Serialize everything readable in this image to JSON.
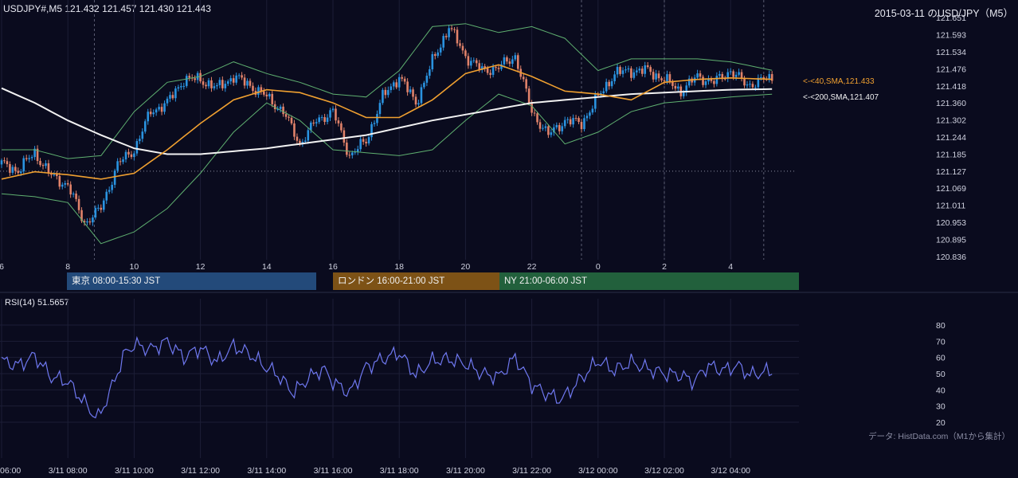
{
  "header": {
    "symbol_ohlc": "USDJPY#,M5 121.432 121.457 121.430 121.443",
    "title": "2015-03-11 のUSD/JPY（M5）"
  },
  "rsi_label": "RSI(14) 51.5657",
  "source_note": "データ: HistData.com（M1から集計）",
  "sessions": [
    {
      "label": "東京 08:00-15:30 JST",
      "color": "#234a7a"
    },
    {
      "label": "ロンドン 16:00-21:00 JST",
      "color": "#7d5216"
    },
    {
      "label": "NY 21:00-06:00 JST",
      "color": "#22603c"
    }
  ],
  "colors": {
    "background": "#0a0b1e",
    "candle_up": "#2a93e0",
    "candle_down": "#e0826a",
    "sma40": "#f0a030",
    "sma200": "#f2f2f2",
    "bollinger": "#5fb070",
    "rsi": "#6f78f0"
  },
  "chart_data": [
    {
      "type": "candlestick",
      "title": "",
      "y_ticks": [
        "121.651",
        "121.593",
        "121.534",
        "121.476",
        "121.418",
        "121.360",
        "121.302",
        "121.244",
        "121.185",
        "121.127",
        "121.069",
        "121.011",
        "120.953",
        "120.895",
        "120.836"
      ],
      "ylim": [
        120.836,
        121.651
      ],
      "x_ticks": [
        "6",
        "8",
        "10",
        "12",
        "14",
        "16",
        "18",
        "20",
        "22",
        "0",
        "2",
        "4"
      ],
      "x_ticks_bottom": [
        "06:00",
        "3/11 08:00",
        "3/11 10:00",
        "3/11 12:00",
        "3/11 14:00",
        "3/11 16:00",
        "3/11 18:00",
        "3/11 20:00",
        "3/11 22:00",
        "3/12 00:00",
        "3/12 02:00",
        "3/12 04:00"
      ],
      "series": [
        {
          "name": "<-<40,SMA,121.433",
          "value": 121.433
        },
        {
          "name": "<-<200,SMA,121.407",
          "value": 121.407
        }
      ],
      "sma40": [
        [
          6.0,
          121.1
        ],
        [
          7.0,
          121.125
        ],
        [
          8.0,
          121.115
        ],
        [
          9.0,
          121.1
        ],
        [
          10.0,
          121.12
        ],
        [
          11.0,
          121.2
        ],
        [
          12.0,
          121.29
        ],
        [
          13.0,
          121.37
        ],
        [
          14.0,
          121.405
        ],
        [
          15.0,
          121.395
        ],
        [
          16.0,
          121.36
        ],
        [
          17.0,
          121.31
        ],
        [
          18.0,
          121.31
        ],
        [
          19.0,
          121.37
        ],
        [
          20.0,
          121.46
        ],
        [
          21.0,
          121.49
        ],
        [
          22.0,
          121.45
        ],
        [
          23.0,
          121.4
        ],
        [
          24.0,
          121.39
        ],
        [
          25.0,
          121.37
        ],
        [
          26.0,
          121.43
        ],
        [
          27.0,
          121.44
        ],
        [
          28.0,
          121.445
        ],
        [
          29.3,
          121.44
        ]
      ],
      "sma200": [
        [
          6.0,
          121.41
        ],
        [
          7.0,
          121.36
        ],
        [
          8.0,
          121.3
        ],
        [
          9.0,
          121.25
        ],
        [
          10.0,
          121.205
        ],
        [
          11.0,
          121.185
        ],
        [
          12.0,
          121.185
        ],
        [
          13.0,
          121.195
        ],
        [
          14.0,
          121.205
        ],
        [
          15.0,
          121.22
        ],
        [
          16.0,
          121.235
        ],
        [
          17.0,
          121.25
        ],
        [
          18.0,
          121.275
        ],
        [
          19.0,
          121.3
        ],
        [
          20.0,
          121.32
        ],
        [
          21.0,
          121.34
        ],
        [
          22.0,
          121.36
        ],
        [
          23.0,
          121.37
        ],
        [
          24.0,
          121.38
        ],
        [
          25.0,
          121.39
        ],
        [
          26.0,
          121.395
        ],
        [
          27.0,
          121.4
        ],
        [
          28.0,
          121.405
        ],
        [
          29.3,
          121.407
        ]
      ],
      "bb_upper": [
        [
          6.0,
          121.2
        ],
        [
          7.0,
          121.2
        ],
        [
          8.0,
          121.17
        ],
        [
          9.0,
          121.18
        ],
        [
          10.0,
          121.33
        ],
        [
          11.0,
          121.43
        ],
        [
          12.0,
          121.45
        ],
        [
          13.0,
          121.5
        ],
        [
          14.0,
          121.46
        ],
        [
          15.0,
          121.43
        ],
        [
          16.0,
          121.39
        ],
        [
          17.0,
          121.38
        ],
        [
          18.0,
          121.47
        ],
        [
          19.0,
          121.62
        ],
        [
          20.0,
          121.63
        ],
        [
          21.0,
          121.6
        ],
        [
          22.0,
          121.62
        ],
        [
          23.0,
          121.58
        ],
        [
          24.0,
          121.47
        ],
        [
          25.0,
          121.51
        ],
        [
          26.0,
          121.51
        ],
        [
          27.0,
          121.51
        ],
        [
          28.0,
          121.5
        ],
        [
          29.3,
          121.47
        ]
      ],
      "bb_lower": [
        [
          6.0,
          121.05
        ],
        [
          7.0,
          121.04
        ],
        [
          8.0,
          121.02
        ],
        [
          9.0,
          120.88
        ],
        [
          10.0,
          120.92
        ],
        [
          11.0,
          121.0
        ],
        [
          12.0,
          121.12
        ],
        [
          13.0,
          121.26
        ],
        [
          14.0,
          121.36
        ],
        [
          15.0,
          121.3
        ],
        [
          16.0,
          121.2
        ],
        [
          17.0,
          121.19
        ],
        [
          18.0,
          121.18
        ],
        [
          19.0,
          121.2
        ],
        [
          20.0,
          121.3
        ],
        [
          21.0,
          121.39
        ],
        [
          22.0,
          121.35
        ],
        [
          23.0,
          121.22
        ],
        [
          24.0,
          121.26
        ],
        [
          25.0,
          121.33
        ],
        [
          26.0,
          121.36
        ],
        [
          27.0,
          121.37
        ],
        [
          28.0,
          121.38
        ],
        [
          29.3,
          121.39
        ]
      ],
      "close_anchors": [
        [
          6.0,
          121.15
        ],
        [
          6.5,
          121.13
        ],
        [
          7.0,
          121.19
        ],
        [
          7.5,
          121.11
        ],
        [
          8.0,
          121.08
        ],
        [
          8.5,
          120.95
        ],
        [
          9.0,
          121.0
        ],
        [
          9.5,
          121.15
        ],
        [
          10.0,
          121.2
        ],
        [
          10.5,
          121.33
        ],
        [
          11.0,
          121.36
        ],
        [
          11.5,
          121.44
        ],
        [
          12.0,
          121.44
        ],
        [
          12.5,
          121.41
        ],
        [
          13.0,
          121.45
        ],
        [
          13.5,
          121.42
        ],
        [
          14.0,
          121.38
        ],
        [
          14.5,
          121.33
        ],
        [
          15.0,
          121.22
        ],
        [
          15.5,
          121.3
        ],
        [
          16.0,
          121.33
        ],
        [
          16.5,
          121.18
        ],
        [
          17.0,
          121.23
        ],
        [
          17.5,
          121.38
        ],
        [
          18.0,
          121.45
        ],
        [
          18.5,
          121.36
        ],
        [
          19.0,
          121.5
        ],
        [
          19.5,
          121.62
        ],
        [
          20.0,
          121.52
        ],
        [
          20.5,
          121.47
        ],
        [
          21.0,
          121.48
        ],
        [
          21.5,
          121.52
        ],
        [
          22.0,
          121.33
        ],
        [
          22.5,
          121.25
        ],
        [
          23.0,
          121.3
        ],
        [
          23.5,
          121.29
        ],
        [
          24.0,
          121.38
        ],
        [
          24.5,
          121.46
        ],
        [
          25.0,
          121.47
        ],
        [
          25.5,
          121.47
        ],
        [
          26.0,
          121.44
        ],
        [
          26.5,
          121.4
        ],
        [
          27.0,
          121.45
        ],
        [
          27.5,
          121.43
        ],
        [
          28.0,
          121.47
        ],
        [
          28.5,
          121.42
        ],
        [
          29.0,
          121.44
        ],
        [
          29.3,
          121.443
        ]
      ],
      "reference_line": 121.127
    },
    {
      "type": "line",
      "title": "RSI(14) 51.5657",
      "y_ticks": [
        "80",
        "70",
        "60",
        "50",
        "40",
        "30",
        "20"
      ],
      "ylim": [
        15,
        85
      ],
      "rsi_anchors": [
        [
          6.0,
          58
        ],
        [
          6.5,
          55
        ],
        [
          7.0,
          61
        ],
        [
          7.5,
          48
        ],
        [
          8.0,
          45
        ],
        [
          8.5,
          32
        ],
        [
          8.9,
          22
        ],
        [
          9.3,
          40
        ],
        [
          9.7,
          62
        ],
        [
          10.0,
          68
        ],
        [
          10.5,
          65
        ],
        [
          11.0,
          70
        ],
        [
          11.5,
          60
        ],
        [
          12.0,
          66
        ],
        [
          12.5,
          57
        ],
        [
          13.0,
          67
        ],
        [
          13.5,
          62
        ],
        [
          13.9,
          55
        ],
        [
          14.3,
          50
        ],
        [
          14.8,
          38
        ],
        [
          15.3,
          48
        ],
        [
          15.7,
          53
        ],
        [
          16.0,
          45
        ],
        [
          16.5,
          38
        ],
        [
          17.0,
          54
        ],
        [
          17.5,
          59
        ],
        [
          18.0,
          63
        ],
        [
          18.5,
          49
        ],
        [
          19.0,
          58
        ],
        [
          19.5,
          59
        ],
        [
          20.0,
          56
        ],
        [
          20.5,
          50
        ],
        [
          21.0,
          48
        ],
        [
          21.5,
          60
        ],
        [
          22.0,
          43
        ],
        [
          22.5,
          37
        ],
        [
          22.9,
          34
        ],
        [
          23.4,
          45
        ],
        [
          24.0,
          58
        ],
        [
          24.5,
          52
        ],
        [
          25.0,
          57
        ],
        [
          25.5,
          53
        ],
        [
          26.0,
          50
        ],
        [
          26.5,
          49
        ],
        [
          26.9,
          45
        ],
        [
          27.3,
          55
        ],
        [
          27.8,
          52
        ],
        [
          28.2,
          55
        ],
        [
          28.6,
          49
        ],
        [
          29.0,
          51
        ],
        [
          29.3,
          51.57
        ]
      ]
    }
  ]
}
